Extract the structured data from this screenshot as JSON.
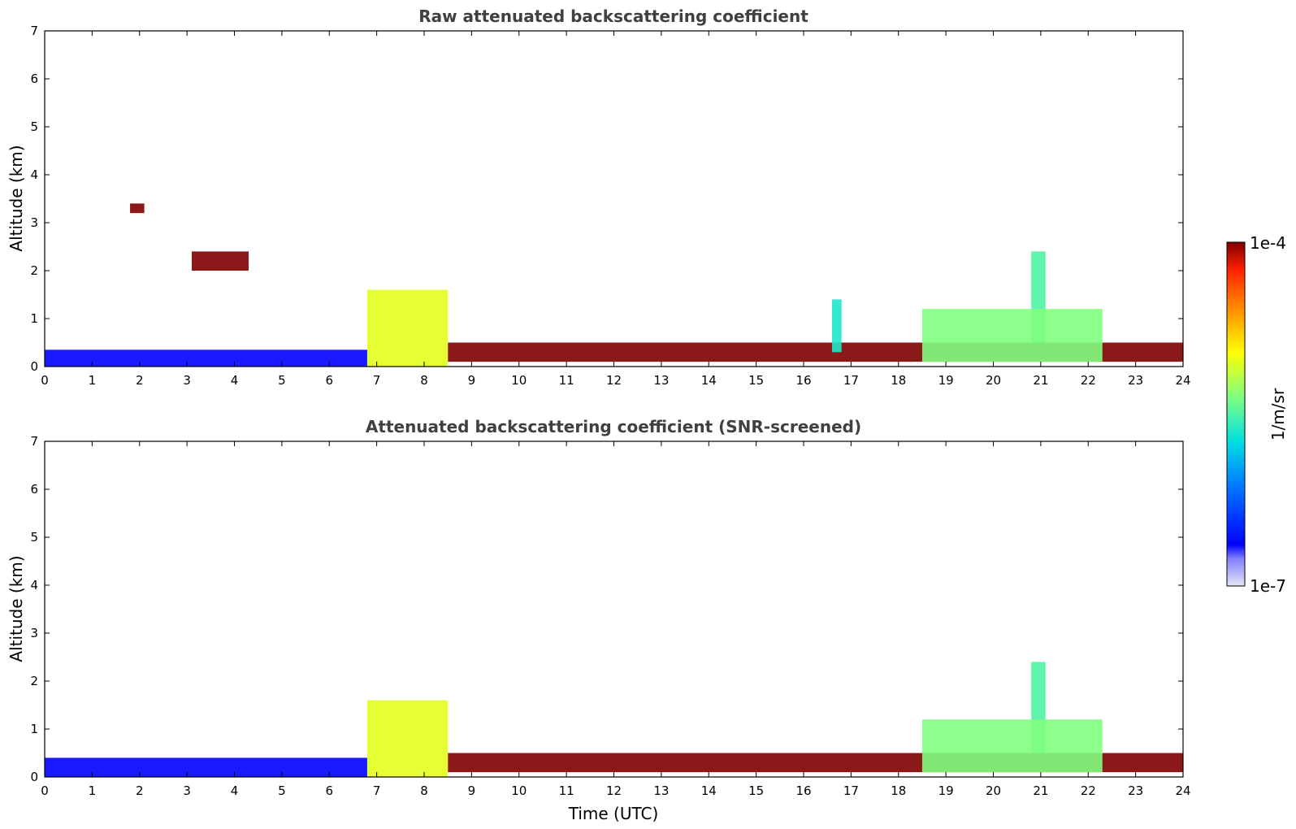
{
  "chart_data": [
    {
      "type": "heatmap",
      "title": "Raw attenuated backscattering coefficient",
      "xlabel": "",
      "ylabel": "Altitude (km)",
      "xlim": [
        0,
        24
      ],
      "ylim": [
        0,
        7
      ],
      "xticks": [
        "0",
        "1",
        "2",
        "3",
        "4",
        "5",
        "6",
        "7",
        "8",
        "9",
        "10",
        "11",
        "12",
        "13",
        "14",
        "15",
        "16",
        "17",
        "18",
        "19",
        "20",
        "21",
        "22",
        "23",
        "24"
      ],
      "yticks": [
        "0",
        "1",
        "2",
        "3",
        "4",
        "5",
        "6",
        "7"
      ],
      "features": [
        {
          "kind": "surface_layer",
          "x": [
            0,
            6.8
          ],
          "y": [
            0,
            0.35
          ],
          "level": 0.12
        },
        {
          "kind": "boundary_layer_top",
          "x": [
            8.5,
            24
          ],
          "y": [
            0.1,
            0.5
          ],
          "level": 1.0
        },
        {
          "kind": "aerosol_plume",
          "x": [
            6.8,
            8.5
          ],
          "y": [
            0,
            1.6
          ],
          "level": 0.65
        },
        {
          "kind": "cloud_layer",
          "x": [
            1.8,
            2.1
          ],
          "y": [
            3.2,
            3.4
          ],
          "level": 1.0
        },
        {
          "kind": "cloud_layer",
          "x": [
            3.1,
            4.3
          ],
          "y": [
            2.0,
            2.4
          ],
          "level": 1.0
        },
        {
          "kind": "convective_plume",
          "x": [
            20.8,
            21.1
          ],
          "y": [
            0.5,
            2.4
          ],
          "level": 0.5
        },
        {
          "kind": "convective_plume",
          "x": [
            16.6,
            16.8
          ],
          "y": [
            0.3,
            1.4
          ],
          "level": 0.45
        },
        {
          "kind": "mixed_layer",
          "x": [
            18.5,
            22.3
          ],
          "y": [
            0.1,
            1.2
          ],
          "level": 0.55
        }
      ]
    },
    {
      "type": "heatmap",
      "title": "Attenuated backscattering coefficient (SNR-screened)",
      "xlabel": "Time (UTC)",
      "ylabel": "Altitude (km)",
      "xlim": [
        0,
        24
      ],
      "ylim": [
        0,
        7
      ],
      "xticks": [
        "0",
        "1",
        "2",
        "3",
        "4",
        "5",
        "6",
        "7",
        "8",
        "9",
        "10",
        "11",
        "12",
        "13",
        "14",
        "15",
        "16",
        "17",
        "18",
        "19",
        "20",
        "21",
        "22",
        "23",
        "24"
      ],
      "yticks": [
        "0",
        "1",
        "2",
        "3",
        "4",
        "5",
        "6",
        "7"
      ],
      "features": [
        {
          "kind": "surface_layer",
          "x": [
            0,
            6.8
          ],
          "y": [
            0,
            0.4
          ],
          "level": 0.12
        },
        {
          "kind": "boundary_layer_top",
          "x": [
            8.5,
            24
          ],
          "y": [
            0.1,
            0.5
          ],
          "level": 1.0
        },
        {
          "kind": "aerosol_plume",
          "x": [
            6.8,
            8.5
          ],
          "y": [
            0,
            1.6
          ],
          "level": 0.65
        },
        {
          "kind": "convective_plume",
          "x": [
            20.8,
            21.1
          ],
          "y": [
            0.5,
            2.4
          ],
          "level": 0.5
        },
        {
          "kind": "mixed_layer",
          "x": [
            18.5,
            22.3
          ],
          "y": [
            0.1,
            1.2
          ],
          "level": 0.55
        }
      ]
    }
  ],
  "colorbar": {
    "label": "1/m/sr",
    "max_label": "1e-4",
    "min_label": "1e-7",
    "scale": "log",
    "colormap": "jet"
  }
}
